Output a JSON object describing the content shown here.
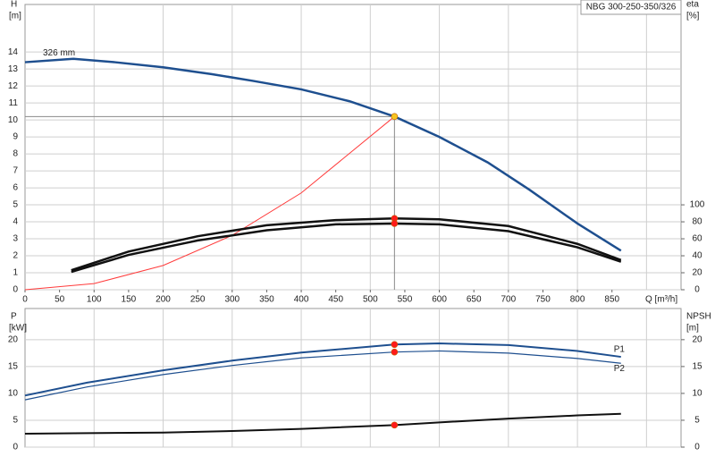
{
  "chart_data": [
    {
      "type": "line",
      "title": "NBG 300-250-350/326",
      "ylabel": "H",
      "yunit": "[m]",
      "y2label": "eta",
      "y2unit": "[%]",
      "xlabel": "Q [m³/h]",
      "xlim": [
        0,
        950
      ],
      "xticks": [
        0,
        50,
        100,
        150,
        200,
        250,
        300,
        350,
        400,
        450,
        500,
        550,
        600,
        650,
        700,
        750,
        800,
        850
      ],
      "xgrid": [
        100,
        200,
        300,
        400,
        500,
        600,
        700,
        800,
        900
      ],
      "ylim": [
        0,
        16.8
      ],
      "yticks": [
        0,
        1,
        2,
        3,
        4,
        5,
        6,
        7,
        8,
        9,
        10,
        11,
        12,
        13,
        14
      ],
      "y2lim": [
        0,
        336
      ],
      "y2ticks": [
        0,
        20,
        40,
        60,
        80,
        100
      ],
      "grid": true,
      "series": [
        {
          "name": "326 mm",
          "color": "#1e4f8f",
          "width": 2.5,
          "x": [
            0,
            70,
            130,
            200,
            270,
            330,
            400,
            470,
            535,
            600,
            670,
            730,
            800,
            863
          ],
          "values": [
            13.4,
            13.6,
            13.4,
            13.1,
            12.7,
            12.3,
            11.8,
            11.1,
            10.2,
            9.0,
            7.5,
            5.9,
            3.9,
            2.3
          ]
        },
        {
          "color": "#ff3b3b",
          "width": 1,
          "x": [
            0,
            100,
            200,
            300,
            400,
            535
          ],
          "values": [
            0,
            0.36,
            1.43,
            3.2,
            5.7,
            10.2
          ]
        },
        {
          "color": "#111111",
          "width": 2.5,
          "axis": "y2",
          "x": [
            67,
            150,
            250,
            350,
            450,
            535,
            600,
            700,
            800,
            863
          ],
          "values": [
            23,
            45,
            63,
            76,
            82,
            84,
            83,
            75,
            54,
            35
          ]
        },
        {
          "color": "#111111",
          "width": 2.5,
          "axis": "y2",
          "x": [
            67,
            150,
            250,
            350,
            450,
            535,
            600,
            700,
            800,
            863
          ],
          "values": [
            21,
            41,
            58,
            70,
            77,
            78,
            77,
            69,
            50,
            33
          ]
        }
      ],
      "points": [
        {
          "x": 535,
          "y": 10.2,
          "color": "#f7c520"
        },
        {
          "x": 535,
          "y": 84,
          "color": "#ff1a1a",
          "axis": "y2"
        },
        {
          "x": 535,
          "y": 78,
          "color": "#ff1a1a",
          "axis": "y2"
        }
      ]
    },
    {
      "type": "line",
      "ylabel": "P",
      "yunit": "[kW]",
      "y2label": "NPSH",
      "y2unit": "[m]",
      "xlim": [
        0,
        950
      ],
      "xgrid": [
        100,
        200,
        300,
        400,
        500,
        600,
        700,
        800,
        900
      ],
      "ylim": [
        0,
        25.8
      ],
      "yticks": [
        0,
        5,
        10,
        15,
        20
      ],
      "y2lim": [
        0,
        25.8
      ],
      "y2ticks": [
        0,
        5,
        10,
        15,
        20
      ],
      "grid": true,
      "series": [
        {
          "name": "P1",
          "color": "#1e4f8f",
          "width": 2,
          "x": [
            0,
            90,
            200,
            300,
            400,
            535,
            600,
            700,
            800,
            863
          ],
          "values": [
            9.6,
            12.0,
            14.3,
            16.1,
            17.6,
            19.1,
            19.3,
            19.0,
            17.9,
            16.8
          ]
        },
        {
          "name": "P2",
          "color": "#1e4f8f",
          "width": 1.2,
          "x": [
            0,
            90,
            200,
            300,
            400,
            535,
            600,
            700,
            800,
            863
          ],
          "values": [
            8.8,
            11.2,
            13.5,
            15.2,
            16.6,
            17.7,
            17.9,
            17.5,
            16.5,
            15.6
          ]
        },
        {
          "color": "#111111",
          "width": 2,
          "axis": "y2",
          "x": [
            0,
            90,
            200,
            300,
            400,
            535,
            600,
            700,
            800,
            863
          ],
          "values": [
            2.5,
            2.6,
            2.7,
            3.0,
            3.4,
            4.1,
            4.6,
            5.3,
            5.9,
            6.2
          ]
        }
      ],
      "points": [
        {
          "x": 535,
          "y": 19.1,
          "color": "#ff1a1a"
        },
        {
          "x": 535,
          "y": 17.7,
          "color": "#ff1a1a"
        },
        {
          "x": 535,
          "y": 4.1,
          "color": "#ff1a1a",
          "axis": "y2"
        }
      ]
    }
  ]
}
